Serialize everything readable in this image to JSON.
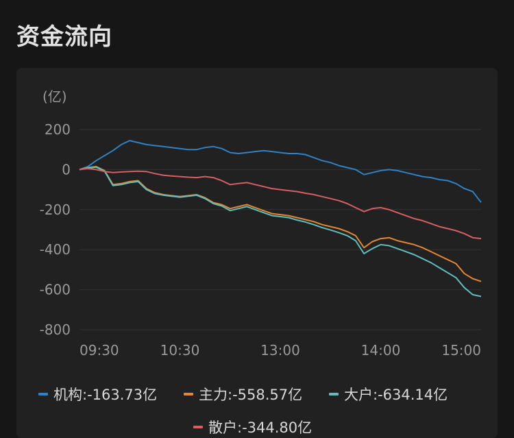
{
  "header": {
    "title": "资金流向"
  },
  "chart_data": {
    "type": "line",
    "unit_label": "(亿)",
    "ylim": [
      -800,
      200
    ],
    "yticks": [
      200,
      0,
      -200,
      -400,
      -600,
      -800
    ],
    "yticklabels": [
      "200",
      "0",
      "-200",
      "-400",
      "-600",
      "-800"
    ],
    "xticklabels": [
      "09:30",
      "10:30",
      "13:00",
      "14:00",
      "15:00"
    ],
    "xtick_positions": [
      0,
      60,
      120,
      180,
      240
    ],
    "xlim": [
      0,
      240
    ],
    "grid": true,
    "legend_position": "bottom",
    "series": [
      {
        "name": "机构",
        "legend_label": "机构:-163.73亿",
        "color": "#2e82c6",
        "x": [
          0,
          5,
          10,
          15,
          20,
          25,
          30,
          35,
          40,
          45,
          50,
          55,
          60,
          65,
          70,
          75,
          80,
          85,
          90,
          95,
          100,
          105,
          110,
          115,
          120,
          125,
          130,
          135,
          140,
          145,
          150,
          155,
          160,
          165,
          170,
          175,
          180,
          185,
          190,
          195,
          200,
          205,
          210,
          215,
          220,
          225,
          230,
          235,
          240
        ],
        "values": [
          0,
          15,
          45,
          70,
          95,
          125,
          145,
          135,
          125,
          120,
          115,
          110,
          105,
          100,
          100,
          110,
          115,
          105,
          85,
          80,
          85,
          90,
          95,
          90,
          85,
          80,
          80,
          75,
          60,
          45,
          35,
          20,
          10,
          0,
          -25,
          -15,
          -5,
          0,
          -5,
          -15,
          -25,
          -35,
          -40,
          -50,
          -55,
          -70,
          -95,
          -110,
          -164
        ]
      },
      {
        "name": "主力",
        "legend_label": "主力:-558.57亿",
        "color": "#e58633",
        "x": [
          0,
          5,
          10,
          15,
          20,
          25,
          30,
          35,
          40,
          45,
          50,
          55,
          60,
          65,
          70,
          75,
          80,
          85,
          90,
          95,
          100,
          105,
          110,
          115,
          120,
          125,
          130,
          135,
          140,
          145,
          150,
          155,
          160,
          165,
          170,
          175,
          180,
          185,
          190,
          195,
          200,
          205,
          210,
          215,
          220,
          225,
          230,
          235,
          240
        ],
        "values": [
          0,
          10,
          15,
          -5,
          -75,
          -70,
          -60,
          -55,
          -95,
          -115,
          -125,
          -130,
          -135,
          -130,
          -125,
          -140,
          -165,
          -175,
          -195,
          -185,
          -175,
          -190,
          -205,
          -220,
          -225,
          -230,
          -240,
          -250,
          -260,
          -275,
          -285,
          -295,
          -310,
          -330,
          -390,
          -360,
          -345,
          -340,
          -355,
          -365,
          -375,
          -390,
          -410,
          -430,
          -450,
          -470,
          -520,
          -545,
          -559
        ]
      },
      {
        "name": "大户",
        "legend_label": "大户:-634.14亿",
        "color": "#5fbfbe",
        "x": [
          0,
          5,
          10,
          15,
          20,
          25,
          30,
          35,
          40,
          45,
          50,
          55,
          60,
          65,
          70,
          75,
          80,
          85,
          90,
          95,
          100,
          105,
          110,
          115,
          120,
          125,
          130,
          135,
          140,
          145,
          150,
          155,
          160,
          165,
          170,
          175,
          180,
          185,
          190,
          195,
          200,
          205,
          210,
          215,
          220,
          225,
          230,
          235,
          240
        ],
        "values": [
          0,
          8,
          12,
          -8,
          -80,
          -75,
          -65,
          -60,
          -100,
          -120,
          -128,
          -133,
          -138,
          -133,
          -128,
          -145,
          -170,
          -182,
          -205,
          -195,
          -185,
          -200,
          -215,
          -230,
          -235,
          -240,
          -252,
          -262,
          -275,
          -290,
          -302,
          -315,
          -330,
          -355,
          -420,
          -395,
          -375,
          -380,
          -395,
          -410,
          -425,
          -445,
          -465,
          -490,
          -515,
          -540,
          -590,
          -625,
          -634
        ]
      },
      {
        "name": "散户",
        "legend_label": "散户:-344.80亿",
        "color": "#d65f63",
        "x": [
          0,
          5,
          10,
          15,
          20,
          25,
          30,
          35,
          40,
          45,
          50,
          55,
          60,
          65,
          70,
          75,
          80,
          85,
          90,
          95,
          100,
          105,
          110,
          115,
          120,
          125,
          130,
          135,
          140,
          145,
          150,
          155,
          160,
          165,
          170,
          175,
          180,
          185,
          190,
          195,
          200,
          205,
          210,
          215,
          220,
          225,
          230,
          235,
          240
        ],
        "values": [
          0,
          5,
          0,
          -10,
          -15,
          -12,
          -10,
          -8,
          -10,
          -20,
          -28,
          -32,
          -35,
          -38,
          -40,
          -35,
          -40,
          -55,
          -75,
          -70,
          -65,
          -75,
          -85,
          -95,
          -100,
          -105,
          -110,
          -118,
          -125,
          -135,
          -145,
          -155,
          -170,
          -190,
          -210,
          -195,
          -190,
          -200,
          -215,
          -230,
          -245,
          -255,
          -270,
          -285,
          -295,
          -305,
          -320,
          -340,
          -345
        ]
      }
    ]
  }
}
